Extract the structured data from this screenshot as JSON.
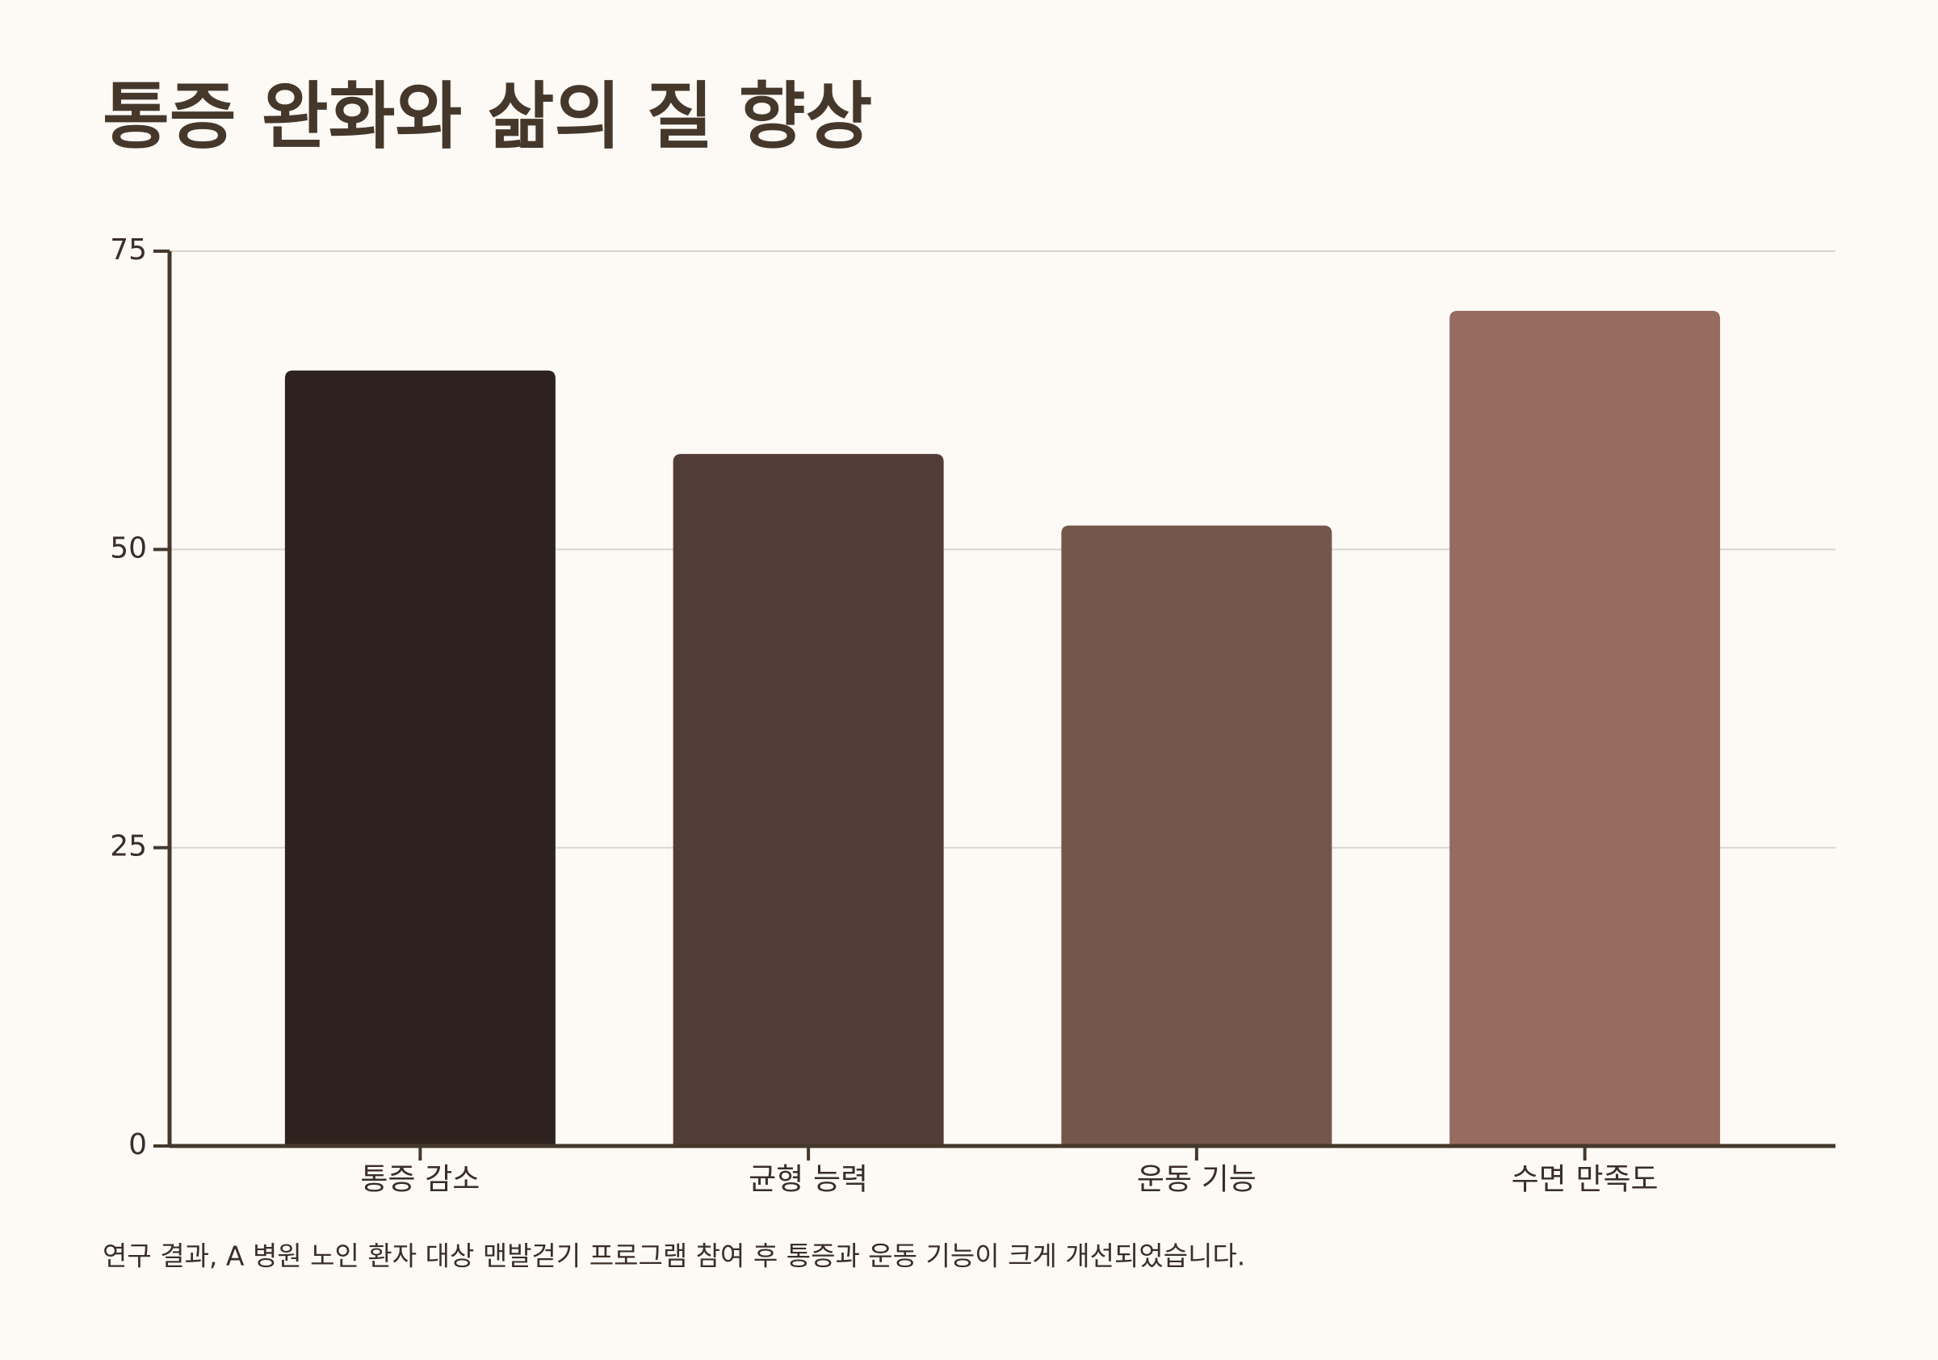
{
  "chart_data": {
    "type": "bar",
    "title": "통증 완화와 삶의 질 향상",
    "categories": [
      "통증 감소",
      "균형 능력",
      "운동 기능",
      "수면 만족도"
    ],
    "values": [
      65,
      58,
      52,
      70
    ],
    "colors": [
      "#2f221e",
      "#523c36",
      "#76564c",
      "#976b5f"
    ],
    "ylim": [
      0,
      75
    ],
    "yticks": [
      0,
      25,
      50,
      75
    ],
    "grid": true,
    "footnote": "연구 결과, A 병원 노인 환자 대상 맨발걷기 프로그램 참여 후 통증과 운동 기능이 크게 개선되었습니다."
  }
}
